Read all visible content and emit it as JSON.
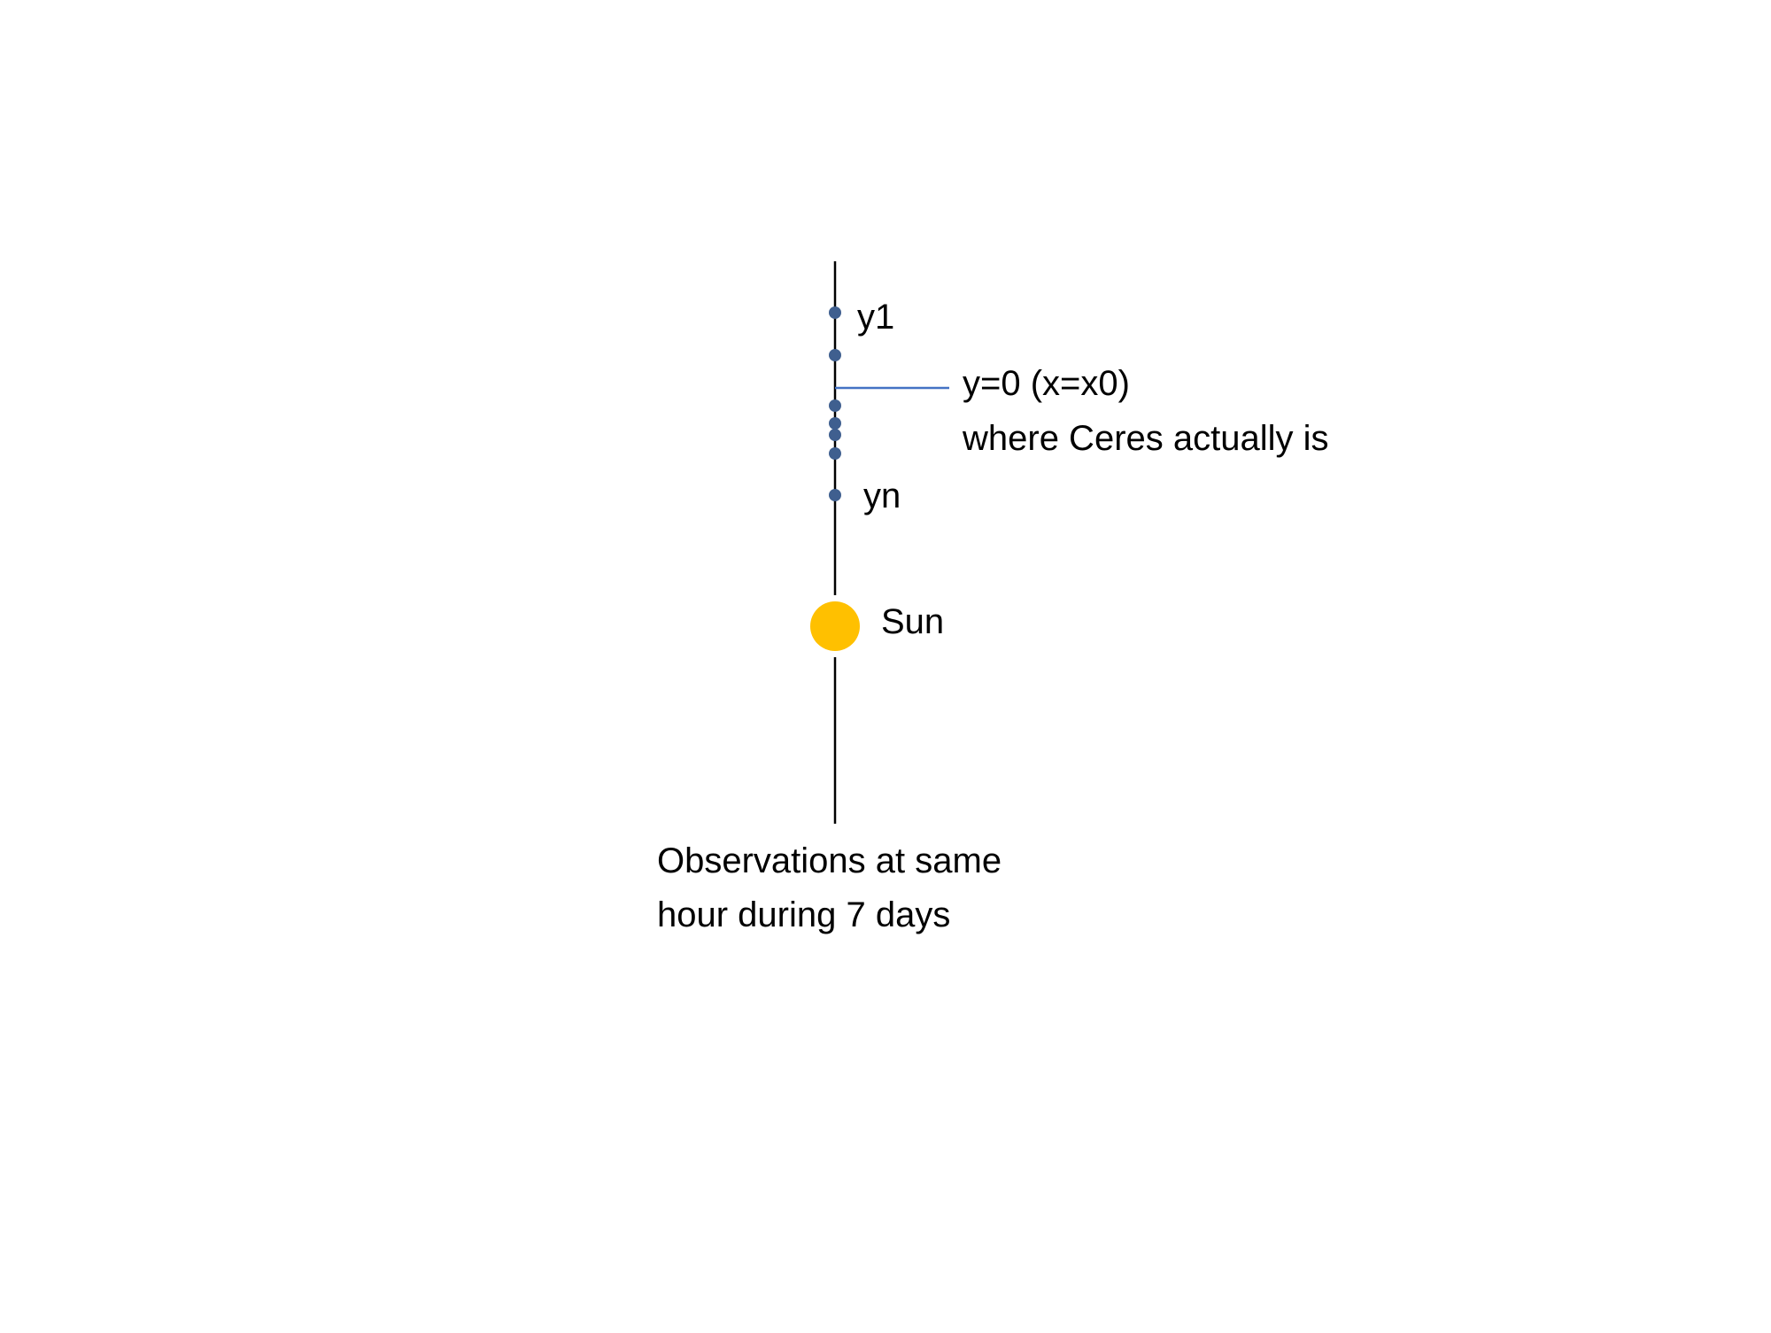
{
  "diagram": {
    "labels": {
      "y1": "y1",
      "yn": "yn",
      "sun": "Sun",
      "reference_line_1": "y=0 (x=x0)",
      "reference_line_2": "where Ceres actually is",
      "caption_1": "Observations at same",
      "caption_2": "hour during 7 days"
    },
    "observations": {
      "count": 7
    },
    "colors": {
      "axis": "#000000",
      "observation_dot": "#3F5F8F",
      "reference_line": "#4472C4",
      "sun": "#FFC000",
      "text": "#000000"
    }
  }
}
